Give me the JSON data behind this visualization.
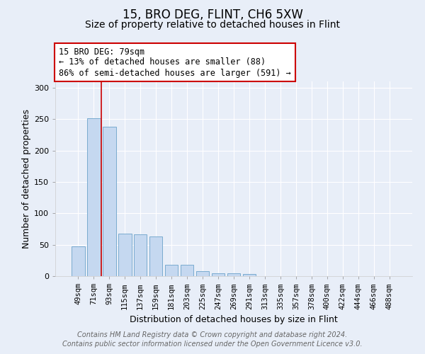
{
  "title": "15, BRO DEG, FLINT, CH6 5XW",
  "subtitle": "Size of property relative to detached houses in Flint",
  "xlabel": "Distribution of detached houses by size in Flint",
  "ylabel": "Number of detached properties",
  "footnote1": "Contains HM Land Registry data © Crown copyright and database right 2024.",
  "footnote2": "Contains public sector information licensed under the Open Government Licence v3.0.",
  "annotation_title": "15 BRO DEG: 79sqm",
  "annotation_line1": "← 13% of detached houses are smaller (88)",
  "annotation_line2": "86% of semi-detached houses are larger (591) →",
  "bar_labels": [
    "49sqm",
    "71sqm",
    "93sqm",
    "115sqm",
    "137sqm",
    "159sqm",
    "181sqm",
    "203sqm",
    "225sqm",
    "247sqm",
    "269sqm",
    "291sqm",
    "313sqm",
    "335sqm",
    "357sqm",
    "378sqm",
    "400sqm",
    "422sqm",
    "444sqm",
    "466sqm",
    "488sqm"
  ],
  "bar_values": [
    47,
    251,
    238,
    68,
    66,
    63,
    18,
    18,
    8,
    5,
    4,
    3,
    0,
    0,
    0,
    0,
    0,
    0,
    0,
    0,
    0
  ],
  "bar_color": "#c5d8f0",
  "bar_edge_color": "#7aabcf",
  "vline_color": "#cc0000",
  "annotation_box_color": "#ffffff",
  "annotation_box_edge": "#cc0000",
  "ylim": [
    0,
    310
  ],
  "yticks": [
    0,
    50,
    100,
    150,
    200,
    250,
    300
  ],
  "background_color": "#e8eef8",
  "grid_color": "#ffffff",
  "title_fontsize": 12,
  "subtitle_fontsize": 10,
  "axis_label_fontsize": 9,
  "tick_fontsize": 7.5,
  "annotation_fontsize": 8.5,
  "footnote_fontsize": 7
}
